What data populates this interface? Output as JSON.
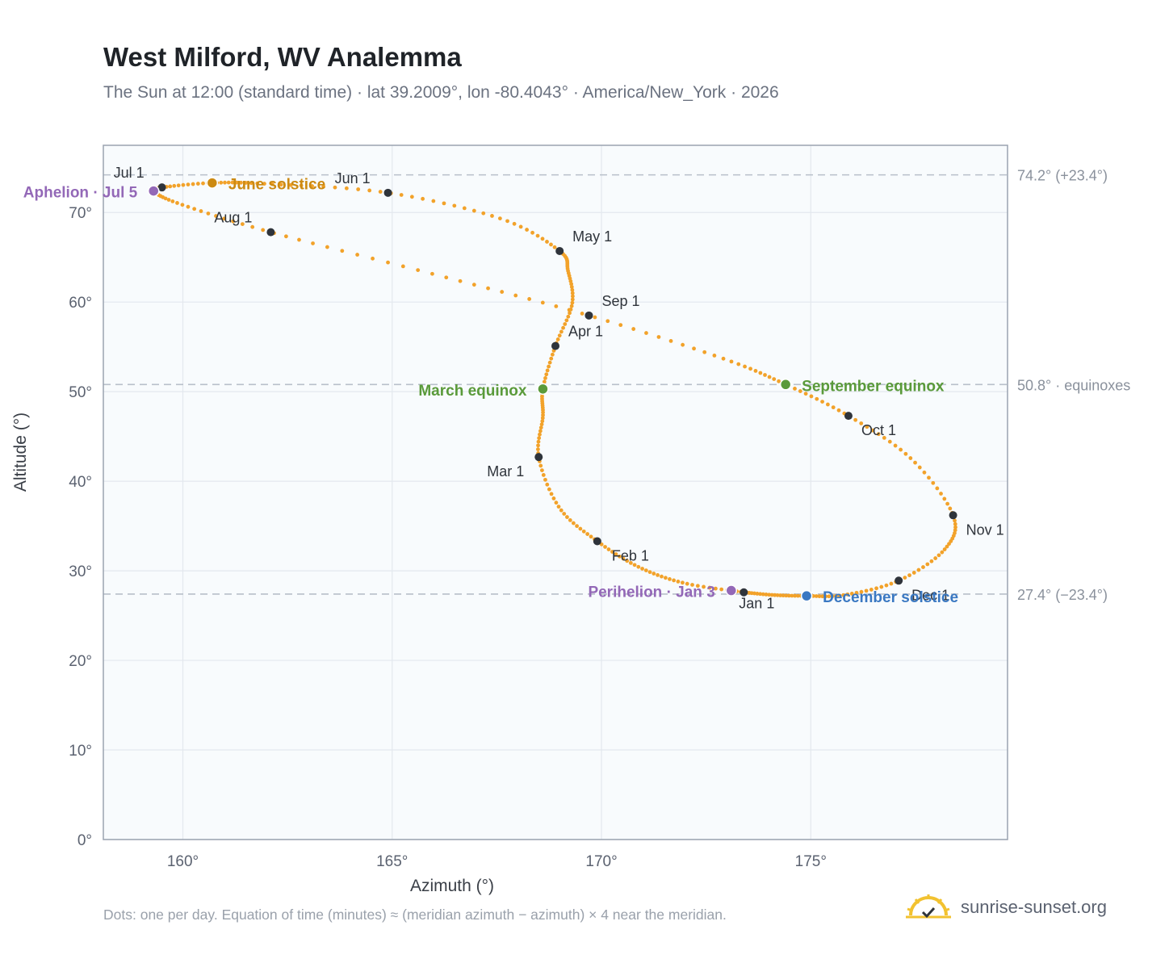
{
  "header": {
    "title": "West Milford, WV Analemma",
    "subtitle": "The Sun at 12:00 (standard time) · lat 39.2009°, lon -80.4043° · America/New_York · 2026"
  },
  "footer": {
    "note": "Dots: one per day. Equation of time (minutes) ≈ (meridian azimuth − azimuth) × 4 near the meridian.",
    "brand": "sunrise-sunset.org"
  },
  "colors": {
    "path": "#f2a22a",
    "month_dot": "#2f343b",
    "solstice_june": "#cc8a12",
    "equinox": "#5a9a3a",
    "december": "#3a78c2",
    "apsis": "#9368b7",
    "plot_bg": "#f8fbfd",
    "grid": "#e3e8ee",
    "frame": "#9aa3b0"
  },
  "chart_data": {
    "type": "scatter",
    "xlabel": "Azimuth (°)",
    "ylabel": "Altitude (°)",
    "xlim": [
      158.1,
      179.7
    ],
    "ylim": [
      0,
      77.5
    ],
    "x_ticks": [
      160,
      165,
      170,
      175
    ],
    "x_tick_labels": [
      "160°",
      "165°",
      "170°",
      "175°"
    ],
    "y_ticks": [
      0,
      10,
      20,
      30,
      40,
      50,
      60,
      70
    ],
    "y_tick_labels": [
      "0°",
      "10°",
      "20°",
      "30°",
      "40°",
      "50°",
      "60°",
      "70°"
    ],
    "grid": true,
    "reference_lines": [
      {
        "y": 74.2,
        "label": "74.2° (+23.4°)"
      },
      {
        "y": 50.8,
        "label": "50.8° · equinoxes"
      },
      {
        "y": 27.4,
        "label": "27.4° (−23.4°)"
      }
    ],
    "month_markers": [
      {
        "label": "Jan 1",
        "az": 173.4,
        "alt": 27.6
      },
      {
        "label": "Feb 1",
        "az": 169.9,
        "alt": 33.3
      },
      {
        "label": "Mar 1",
        "az": 168.5,
        "alt": 42.7
      },
      {
        "label": "Apr 1",
        "az": 168.9,
        "alt": 55.1
      },
      {
        "label": "May 1",
        "az": 169.0,
        "alt": 65.7
      },
      {
        "label": "Jun 1",
        "az": 164.9,
        "alt": 72.2
      },
      {
        "label": "Jul 1",
        "az": 159.5,
        "alt": 72.8
      },
      {
        "label": "Aug 1",
        "az": 162.1,
        "alt": 67.8
      },
      {
        "label": "Sep 1",
        "az": 169.7,
        "alt": 58.5
      },
      {
        "label": "Oct 1",
        "az": 175.9,
        "alt": 47.3
      },
      {
        "label": "Nov 1",
        "az": 178.4,
        "alt": 36.2
      },
      {
        "label": "Dec 1",
        "az": 177.1,
        "alt": 28.9
      }
    ],
    "events": [
      {
        "label": "June solstice",
        "az": 160.7,
        "alt": 73.3,
        "kind": "solstice_june"
      },
      {
        "label": "March equinox",
        "az": 168.6,
        "alt": 50.3,
        "kind": "equinox"
      },
      {
        "label": "September equinox",
        "az": 174.4,
        "alt": 50.8,
        "kind": "equinox"
      },
      {
        "label": "December solstice",
        "az": 174.9,
        "alt": 27.2,
        "kind": "december"
      },
      {
        "label": "Aphelion · Jul 5",
        "az": 159.3,
        "alt": 72.4,
        "kind": "apsis"
      },
      {
        "label": "Perihelion · Jan 3",
        "az": 173.1,
        "alt": 27.8,
        "kind": "apsis"
      }
    ],
    "path_control_points": [
      [
        173.4,
        27.6
      ],
      [
        172.0,
        28.6
      ],
      [
        170.9,
        30.4
      ],
      [
        169.9,
        33.3
      ],
      [
        169.0,
        37.0
      ],
      [
        168.5,
        42.7
      ],
      [
        168.6,
        47.2
      ],
      [
        168.6,
        50.3
      ],
      [
        168.9,
        55.1
      ],
      [
        169.3,
        59.8
      ],
      [
        169.2,
        63.5
      ],
      [
        169.0,
        65.7
      ],
      [
        167.6,
        69.3
      ],
      [
        164.9,
        72.2
      ],
      [
        162.0,
        73.2
      ],
      [
        160.7,
        73.3
      ],
      [
        159.5,
        72.8
      ],
      [
        159.3,
        72.4
      ],
      [
        159.9,
        71.0
      ],
      [
        162.1,
        67.8
      ],
      [
        166.0,
        63.1
      ],
      [
        169.7,
        58.5
      ],
      [
        172.9,
        53.7
      ],
      [
        174.4,
        50.8
      ],
      [
        175.9,
        47.3
      ],
      [
        177.4,
        42.5
      ],
      [
        178.4,
        36.2
      ],
      [
        178.2,
        32.4
      ],
      [
        177.1,
        28.9
      ],
      [
        175.8,
        27.3
      ],
      [
        174.9,
        27.2
      ],
      [
        174.1,
        27.3
      ],
      [
        173.4,
        27.6
      ]
    ]
  }
}
